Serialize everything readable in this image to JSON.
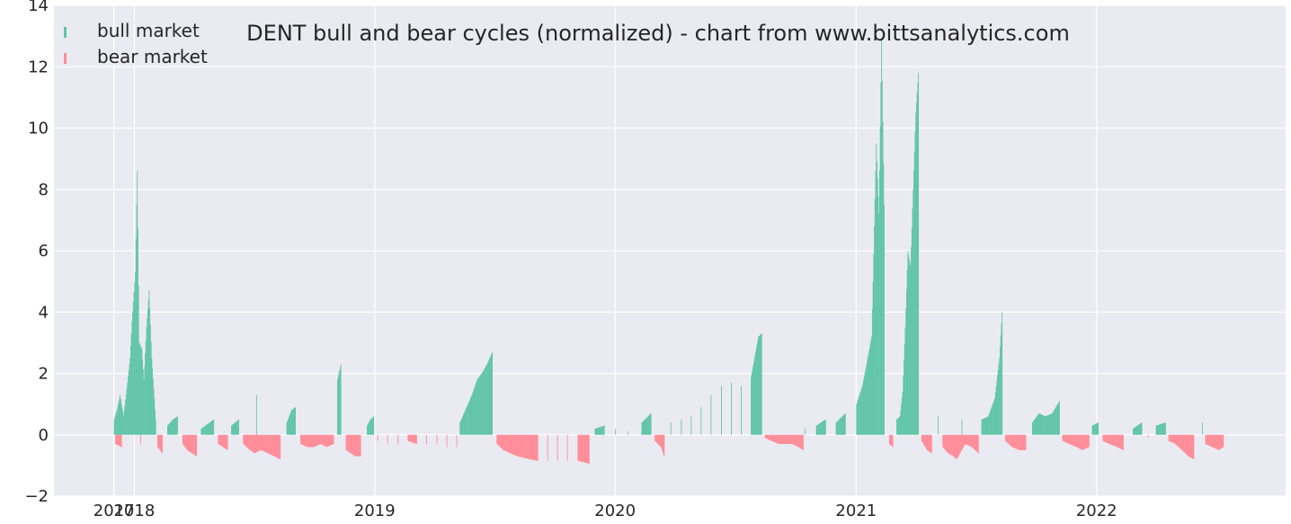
{
  "chart_data": {
    "type": "bar",
    "title": "DENT bull and bear cycles (normalized)  - chart from www.bittsanalytics.com",
    "xlabel": "",
    "ylabel": "",
    "ylim": [
      -2,
      14
    ],
    "xlim": [
      "2017-09-01",
      "2022-10-15"
    ],
    "yticks": [
      "−2",
      "0",
      "2",
      "4",
      "6",
      "8",
      "10",
      "12",
      "14"
    ],
    "xticks": [
      {
        "date": "2017-12-01",
        "label": "2017"
      },
      {
        "date": "2018-01-01",
        "label": "2018"
      },
      {
        "date": "2019-01-01",
        "label": "2019"
      },
      {
        "date": "2020-01-01",
        "label": "2020"
      },
      {
        "date": "2021-01-01",
        "label": "2021"
      },
      {
        "date": "2022-01-01",
        "label": "2022"
      }
    ],
    "grid": true,
    "legend_position": "top-left",
    "colors": {
      "bull": "#5ec4a8",
      "bear": "#ff8a95",
      "background": "#eaeaf2",
      "grid": "#ffffff"
    },
    "series": [
      {
        "name": "bull market",
        "color": "#5ec4a8",
        "points": [
          [
            "2017-12-01",
            0.5
          ],
          [
            "2017-12-05",
            0.8
          ],
          [
            "2017-12-10",
            1.3
          ],
          [
            "2017-12-15",
            0.6
          ],
          [
            "2017-12-20",
            1.5
          ],
          [
            "2017-12-25",
            2.5
          ],
          [
            "2017-12-28",
            3.7
          ],
          [
            "2018-01-02",
            5.3
          ],
          [
            "2018-01-05",
            8.6
          ],
          [
            "2018-01-08",
            3.0
          ],
          [
            "2018-01-12",
            2.8
          ],
          [
            "2018-01-15",
            1.8
          ],
          [
            "2018-01-19",
            3.5
          ],
          [
            "2018-01-23",
            4.7
          ],
          [
            "2018-01-27",
            2.5
          ],
          [
            "2018-02-02",
            0.5
          ],
          [
            "2018-02-20",
            0.3
          ],
          [
            "2018-02-28",
            0.5
          ],
          [
            "2018-03-07",
            0.6
          ],
          [
            "2018-04-12",
            0.2
          ],
          [
            "2018-04-25",
            0.4
          ],
          [
            "2018-05-01",
            0.5
          ],
          [
            "2018-05-28",
            0.3
          ],
          [
            "2018-06-08",
            0.5
          ],
          [
            "2018-07-05",
            1.3
          ],
          [
            "2018-08-20",
            0.4
          ],
          [
            "2018-08-27",
            0.8
          ],
          [
            "2018-09-02",
            0.9
          ],
          [
            "2018-11-05",
            1.8
          ],
          [
            "2018-11-10",
            2.3
          ],
          [
            "2018-12-20",
            0.3
          ],
          [
            "2018-12-25",
            0.5
          ],
          [
            "2018-12-30",
            0.6
          ],
          [
            "2019-05-10",
            0.4
          ],
          [
            "2019-05-20",
            0.9
          ],
          [
            "2019-05-28",
            1.3
          ],
          [
            "2019-06-05",
            1.8
          ],
          [
            "2019-06-12",
            2.0
          ],
          [
            "2019-06-20",
            2.3
          ],
          [
            "2019-06-28",
            2.7
          ],
          [
            "2019-12-01",
            0.2
          ],
          [
            "2019-12-15",
            0.3
          ],
          [
            "2020-01-01",
            0.2
          ],
          [
            "2020-01-20",
            0.1
          ],
          [
            "2020-02-10",
            0.4
          ],
          [
            "2020-02-24",
            0.7
          ],
          [
            "2020-03-25",
            0.4
          ],
          [
            "2020-04-10",
            0.5
          ],
          [
            "2020-04-25",
            0.6
          ],
          [
            "2020-05-10",
            0.9
          ],
          [
            "2020-05-25",
            1.3
          ],
          [
            "2020-06-10",
            1.6
          ],
          [
            "2020-06-25",
            1.7
          ],
          [
            "2020-07-10",
            1.6
          ],
          [
            "2020-07-25",
            1.9
          ],
          [
            "2020-08-05",
            3.2
          ],
          [
            "2020-08-10",
            3.3
          ],
          [
            "2020-10-15",
            0.2
          ],
          [
            "2020-11-01",
            0.3
          ],
          [
            "2020-11-15",
            0.5
          ],
          [
            "2020-12-01",
            0.4
          ],
          [
            "2020-12-15",
            0.7
          ],
          [
            "2021-01-01",
            1.0
          ],
          [
            "2021-01-10",
            1.6
          ],
          [
            "2021-01-17",
            2.4
          ],
          [
            "2021-01-24",
            3.2
          ],
          [
            "2021-01-31",
            9.5
          ],
          [
            "2021-02-04",
            7.2
          ],
          [
            "2021-02-08",
            12.9
          ],
          [
            "2021-02-12",
            7.5
          ],
          [
            "2021-03-03",
            0.5
          ],
          [
            "2021-03-08",
            0.6
          ],
          [
            "2021-03-12",
            1.4
          ],
          [
            "2021-03-16",
            3.5
          ],
          [
            "2021-03-20",
            6.0
          ],
          [
            "2021-03-24",
            5.5
          ],
          [
            "2021-03-28",
            8.0
          ],
          [
            "2021-04-01",
            10.5
          ],
          [
            "2021-04-05",
            11.8
          ],
          [
            "2021-05-05",
            0.6
          ],
          [
            "2021-06-10",
            0.5
          ],
          [
            "2021-07-10",
            0.5
          ],
          [
            "2021-07-20",
            0.6
          ],
          [
            "2021-07-30",
            1.2
          ],
          [
            "2021-08-06",
            2.5
          ],
          [
            "2021-08-10",
            4.0
          ],
          [
            "2021-09-25",
            0.4
          ],
          [
            "2021-10-05",
            0.7
          ],
          [
            "2021-10-15",
            0.6
          ],
          [
            "2021-10-25",
            0.7
          ],
          [
            "2021-11-05",
            1.1
          ],
          [
            "2021-12-25",
            0.3
          ],
          [
            "2022-01-03",
            0.4
          ],
          [
            "2022-02-25",
            0.2
          ],
          [
            "2022-03-10",
            0.4
          ],
          [
            "2022-04-01",
            0.3
          ],
          [
            "2022-04-15",
            0.4
          ],
          [
            "2022-06-10",
            0.4
          ]
        ]
      },
      {
        "name": "bear market",
        "color": "#ff8a95",
        "points": [
          [
            "2017-12-03",
            -0.3
          ],
          [
            "2017-12-12",
            -0.4
          ],
          [
            "2018-01-10",
            -0.3
          ],
          [
            "2018-02-05",
            -0.4
          ],
          [
            "2018-02-12",
            -0.6
          ],
          [
            "2018-03-15",
            -0.3
          ],
          [
            "2018-03-22",
            -0.5
          ],
          [
            "2018-03-29",
            -0.6
          ],
          [
            "2018-04-05",
            -0.7
          ],
          [
            "2018-05-08",
            -0.3
          ],
          [
            "2018-05-15",
            -0.4
          ],
          [
            "2018-05-22",
            -0.5
          ],
          [
            "2018-06-15",
            -0.3
          ],
          [
            "2018-06-25",
            -0.5
          ],
          [
            "2018-07-02",
            -0.6
          ],
          [
            "2018-07-12",
            -0.5
          ],
          [
            "2018-07-22",
            -0.6
          ],
          [
            "2018-08-01",
            -0.7
          ],
          [
            "2018-08-10",
            -0.8
          ],
          [
            "2018-09-10",
            -0.3
          ],
          [
            "2018-09-20",
            -0.4
          ],
          [
            "2018-09-30",
            -0.4
          ],
          [
            "2018-10-10",
            -0.3
          ],
          [
            "2018-10-20",
            -0.4
          ],
          [
            "2018-10-30",
            -0.3
          ],
          [
            "2018-11-18",
            -0.5
          ],
          [
            "2018-11-25",
            -0.6
          ],
          [
            "2018-12-02",
            -0.7
          ],
          [
            "2018-12-10",
            -0.7
          ],
          [
            "2019-01-05",
            -0.2
          ],
          [
            "2019-01-20",
            -0.3
          ],
          [
            "2019-02-05",
            -0.3
          ],
          [
            "2019-02-20",
            -0.2
          ],
          [
            "2019-03-05",
            -0.3
          ],
          [
            "2019-03-20",
            -0.3
          ],
          [
            "2019-04-05",
            -0.3
          ],
          [
            "2019-04-20",
            -0.4
          ],
          [
            "2019-05-05",
            -0.4
          ],
          [
            "2019-07-05",
            -0.3
          ],
          [
            "2019-07-15",
            -0.5
          ],
          [
            "2019-07-25",
            -0.6
          ],
          [
            "2019-08-05",
            -0.7
          ],
          [
            "2019-08-15",
            -0.75
          ],
          [
            "2019-08-25",
            -0.8
          ],
          [
            "2019-09-05",
            -0.85
          ],
          [
            "2019-09-20",
            -0.85
          ],
          [
            "2019-10-05",
            -0.85
          ],
          [
            "2019-10-20",
            -0.85
          ],
          [
            "2019-11-05",
            -0.85
          ],
          [
            "2019-11-15",
            -0.9
          ],
          [
            "2019-11-22",
            -0.95
          ],
          [
            "2020-03-01",
            -0.2
          ],
          [
            "2020-03-10",
            -0.4
          ],
          [
            "2020-03-15",
            -0.7
          ],
          [
            "2020-08-15",
            -0.1
          ],
          [
            "2020-08-25",
            -0.2
          ],
          [
            "2020-09-05",
            -0.3
          ],
          [
            "2020-09-15",
            -0.3
          ],
          [
            "2020-09-25",
            -0.3
          ],
          [
            "2020-10-05",
            -0.4
          ],
          [
            "2020-10-12",
            -0.5
          ],
          [
            "2021-02-20",
            -0.3
          ],
          [
            "2021-02-25",
            -0.4
          ],
          [
            "2021-04-10",
            -0.2
          ],
          [
            "2021-04-18",
            -0.5
          ],
          [
            "2021-04-25",
            -0.6
          ],
          [
            "2021-05-12",
            -0.4
          ],
          [
            "2021-05-20",
            -0.6
          ],
          [
            "2021-05-28",
            -0.7
          ],
          [
            "2021-06-02",
            -0.8
          ],
          [
            "2021-06-15",
            -0.3
          ],
          [
            "2021-06-25",
            -0.4
          ],
          [
            "2021-07-05",
            -0.6
          ],
          [
            "2021-08-15",
            -0.2
          ],
          [
            "2021-08-25",
            -0.4
          ],
          [
            "2021-09-05",
            -0.5
          ],
          [
            "2021-09-15",
            -0.5
          ],
          [
            "2021-11-10",
            -0.2
          ],
          [
            "2021-11-20",
            -0.3
          ],
          [
            "2021-12-01",
            -0.4
          ],
          [
            "2021-12-10",
            -0.5
          ],
          [
            "2021-12-20",
            -0.4
          ],
          [
            "2022-01-10",
            -0.2
          ],
          [
            "2022-01-20",
            -0.3
          ],
          [
            "2022-02-01",
            -0.4
          ],
          [
            "2022-02-10",
            -0.5
          ],
          [
            "2022-03-20",
            -0.1
          ],
          [
            "2022-04-20",
            -0.2
          ],
          [
            "2022-04-30",
            -0.3
          ],
          [
            "2022-05-10",
            -0.5
          ],
          [
            "2022-05-20",
            -0.7
          ],
          [
            "2022-05-28",
            -0.8
          ],
          [
            "2022-06-15",
            -0.3
          ],
          [
            "2022-06-25",
            -0.4
          ],
          [
            "2022-07-05",
            -0.5
          ],
          [
            "2022-07-12",
            -0.4
          ]
        ]
      }
    ]
  }
}
